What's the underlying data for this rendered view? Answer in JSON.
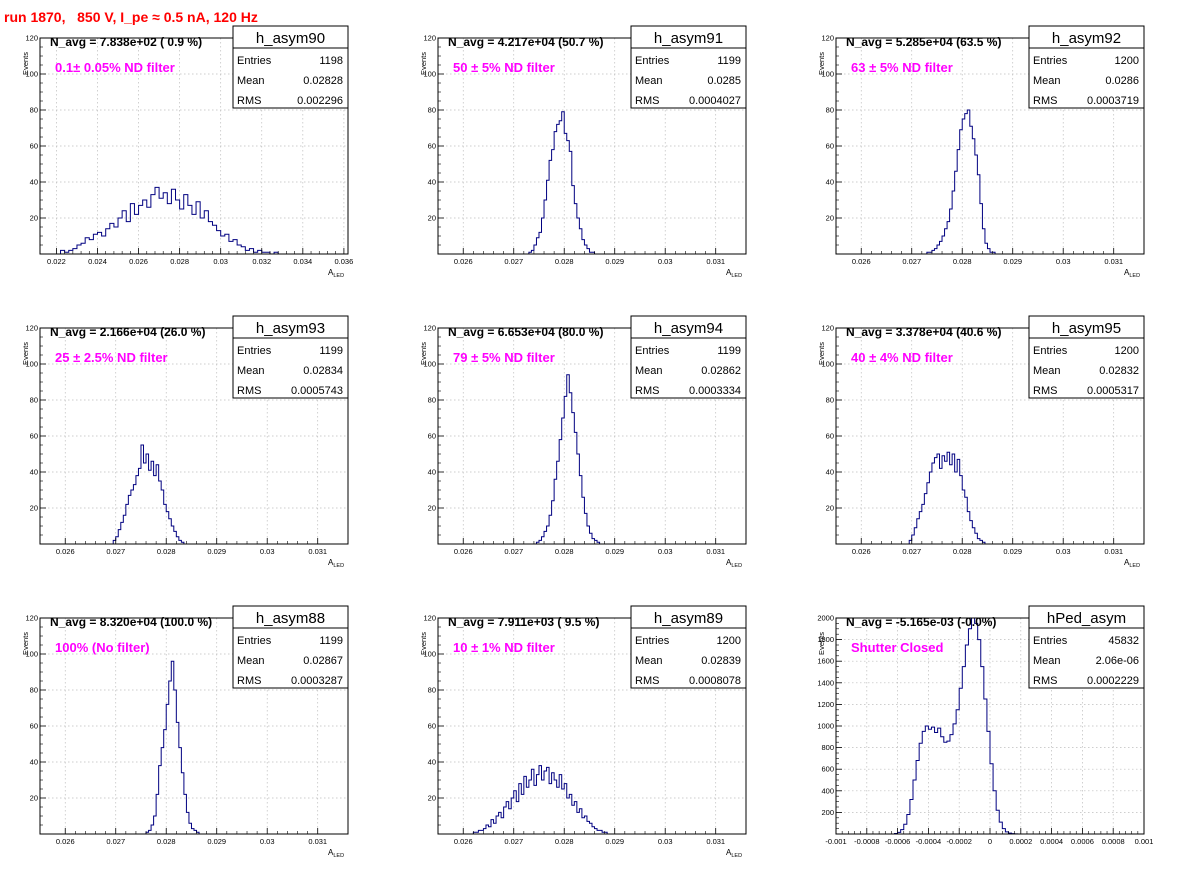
{
  "run_title": "run 1870,   850 V, I_pe ≈ 0.5 nA, 120 Hz",
  "colors": {
    "title": "#ff0000",
    "annotation": "#ff00ff",
    "histogram": "#000080",
    "grid": "#bdbdbd",
    "frame": "#000000"
  },
  "chart_data": [
    {
      "type": "histogram",
      "name": "h_asym90",
      "nav_text": "N_avg = 7.838e+02 ( 0.9 %)",
      "annotation": "0.1± 0.05% ND filter",
      "stats": {
        "entries_label": "Entries",
        "entries": "1198",
        "mean_label": "Mean",
        "mean": "0.02828",
        "rms_label": "RMS",
        "rms": "0.002296"
      },
      "xlabel": "A",
      "xlabel_sub": "LED",
      "ylabel": "Events",
      "grid": true,
      "xlim": [
        0.0212,
        0.0362
      ],
      "ylim": [
        0,
        120
      ],
      "xticks": [
        0.022,
        0.024,
        0.026,
        0.028,
        0.03,
        0.032,
        0.034,
        0.036
      ],
      "xtick_labels": [
        "0.022",
        "0.024",
        "0.026",
        "0.028",
        "0.03",
        "0.032",
        "0.034",
        "0.036"
      ],
      "yticks": [
        0,
        20,
        40,
        60,
        80,
        100,
        120
      ],
      "ytick_labels": [
        "",
        "20",
        "40",
        "60",
        "80",
        "100",
        "120"
      ],
      "bins": {
        "x0": 0.0222,
        "width": 0.0002,
        "values": [
          2,
          1,
          2,
          3,
          5,
          6,
          9,
          8,
          11,
          12,
          10,
          14,
          17,
          15,
          20,
          24,
          18,
          28,
          22,
          27,
          30,
          26,
          33,
          37,
          31,
          34,
          28,
          36,
          30,
          25,
          33,
          27,
          22,
          29,
          20,
          24,
          18,
          16,
          13,
          10,
          11,
          7,
          8,
          5,
          4,
          2,
          3,
          1,
          2,
          1,
          1,
          0,
          1,
          0,
          0
        ]
      }
    },
    {
      "type": "histogram",
      "name": "h_asym91",
      "nav_text": "N_avg = 4.217e+04 (50.7 %)",
      "annotation": "50 ± 5% ND filter",
      "stats": {
        "entries_label": "Entries",
        "entries": "1199",
        "mean_label": "Mean",
        "mean": "0.0285",
        "rms_label": "RMS",
        "rms": "0.0004027"
      },
      "xlabel": "A",
      "xlabel_sub": "LED",
      "ylabel": "Events",
      "grid": true,
      "xlim": [
        0.0255,
        0.0316
      ],
      "ylim": [
        0,
        120
      ],
      "xticks": [
        0.026,
        0.027,
        0.028,
        0.029,
        0.03,
        0.031
      ],
      "xtick_labels": [
        "0.026",
        "0.027",
        "0.028",
        "0.029",
        "0.03",
        "0.031"
      ],
      "yticks": [
        0,
        20,
        40,
        60,
        80,
        100,
        120
      ],
      "ytick_labels": [
        "",
        "20",
        "40",
        "60",
        "80",
        "100",
        "120"
      ],
      "bins": {
        "x0": 0.0273,
        "width": 5e-05,
        "values": [
          1,
          2,
          5,
          9,
          12,
          20,
          30,
          41,
          52,
          58,
          68,
          72,
          74,
          79,
          67,
          63,
          57,
          38,
          28,
          20,
          14,
          8,
          5,
          3,
          1,
          1
        ]
      }
    },
    {
      "type": "histogram",
      "name": "h_asym92",
      "nav_text": "N_avg = 5.285e+04 (63.5 %)",
      "annotation": "63 ± 5% ND filter",
      "stats": {
        "entries_label": "Entries",
        "entries": "1200",
        "mean_label": "Mean",
        "mean": "0.0286",
        "rms_label": "RMS",
        "rms": "0.0003719"
      },
      "xlabel": "A",
      "xlabel_sub": "LED",
      "ylabel": "Events",
      "grid": true,
      "xlim": [
        0.0255,
        0.0316
      ],
      "ylim": [
        0,
        120
      ],
      "xticks": [
        0.026,
        0.027,
        0.028,
        0.029,
        0.03,
        0.031
      ],
      "xtick_labels": [
        "0.026",
        "0.027",
        "0.028",
        "0.029",
        "0.03",
        "0.031"
      ],
      "yticks": [
        0,
        20,
        40,
        60,
        80,
        100,
        120
      ],
      "ytick_labels": [
        "",
        "20",
        "40",
        "60",
        "80",
        "100",
        "120"
      ],
      "bins": {
        "x0": 0.0273,
        "width": 5e-05,
        "values": [
          1,
          1,
          2,
          3,
          5,
          7,
          10,
          14,
          18,
          25,
          35,
          46,
          58,
          69,
          75,
          78,
          80,
          71,
          64,
          55,
          44,
          28,
          14,
          6,
          3,
          1,
          1
        ]
      }
    },
    {
      "type": "histogram",
      "name": "h_asym93",
      "nav_text": "N_avg = 2.166e+04 (26.0 %)",
      "annotation": "25 ± 2.5% ND filter",
      "stats": {
        "entries_label": "Entries",
        "entries": "1199",
        "mean_label": "Mean",
        "mean": "0.02834",
        "rms_label": "RMS",
        "rms": "0.0005743"
      },
      "xlabel": "A",
      "xlabel_sub": "LED",
      "ylabel": "Events",
      "grid": true,
      "xlim": [
        0.0255,
        0.0316
      ],
      "ylim": [
        0,
        120
      ],
      "xticks": [
        0.026,
        0.027,
        0.028,
        0.029,
        0.03,
        0.031
      ],
      "xtick_labels": [
        "0.026",
        "0.027",
        "0.028",
        "0.029",
        "0.03",
        "0.031"
      ],
      "yticks": [
        0,
        20,
        40,
        60,
        80,
        100,
        120
      ],
      "ytick_labels": [
        "",
        "20",
        "40",
        "60",
        "80",
        "100",
        "120"
      ],
      "bins": {
        "x0": 0.02695,
        "width": 5e-05,
        "values": [
          2,
          4,
          8,
          12,
          16,
          22,
          27,
          30,
          33,
          38,
          42,
          55,
          45,
          50,
          41,
          46,
          38,
          44,
          35,
          30,
          22,
          18,
          14,
          10,
          7,
          4,
          2,
          1
        ]
      }
    },
    {
      "type": "histogram",
      "name": "h_asym94",
      "nav_text": "N_avg = 6.653e+04 (80.0 %)",
      "annotation": "79 ± 5% ND filter",
      "stats": {
        "entries_label": "Entries",
        "entries": "1199",
        "mean_label": "Mean",
        "mean": "0.02862",
        "rms_label": "RMS",
        "rms": "0.0003334"
      },
      "xlabel": "A",
      "xlabel_sub": "LED",
      "ylabel": "Events",
      "grid": true,
      "xlim": [
        0.0255,
        0.0316
      ],
      "ylim": [
        0,
        120
      ],
      "xticks": [
        0.026,
        0.027,
        0.028,
        0.029,
        0.03,
        0.031
      ],
      "xtick_labels": [
        "0.026",
        "0.027",
        "0.028",
        "0.029",
        "0.03",
        "0.031"
      ],
      "yticks": [
        0,
        20,
        40,
        60,
        80,
        100,
        120
      ],
      "ytick_labels": [
        "",
        "20",
        "40",
        "60",
        "80",
        "100",
        "120"
      ],
      "bins": {
        "x0": 0.02745,
        "width": 5e-05,
        "values": [
          1,
          2,
          4,
          7,
          10,
          16,
          24,
          36,
          46,
          58,
          70,
          82,
          94,
          84,
          73,
          62,
          50,
          38,
          26,
          17,
          10,
          6,
          3,
          2,
          1
        ]
      }
    },
    {
      "type": "histogram",
      "name": "h_asym95",
      "nav_text": "N_avg = 3.378e+04 (40.6 %)",
      "annotation": "40 ± 4% ND filter",
      "stats": {
        "entries_label": "Entries",
        "entries": "1200",
        "mean_label": "Mean",
        "mean": "0.02832",
        "rms_label": "RMS",
        "rms": "0.0005317"
      },
      "xlabel": "A",
      "xlabel_sub": "LED",
      "ylabel": "Events",
      "grid": true,
      "xlim": [
        0.0255,
        0.0316
      ],
      "ylim": [
        0,
        120
      ],
      "xticks": [
        0.026,
        0.027,
        0.028,
        0.029,
        0.03,
        0.031
      ],
      "xtick_labels": [
        "0.026",
        "0.027",
        "0.028",
        "0.029",
        "0.03",
        "0.031"
      ],
      "yticks": [
        0,
        20,
        40,
        60,
        80,
        100,
        120
      ],
      "ytick_labels": [
        "",
        "20",
        "40",
        "60",
        "80",
        "100",
        "120"
      ],
      "bins": {
        "x0": 0.02695,
        "width": 5e-05,
        "values": [
          2,
          5,
          9,
          14,
          18,
          22,
          28,
          34,
          40,
          45,
          48,
          50,
          42,
          49,
          46,
          51,
          44,
          50,
          40,
          47,
          38,
          30,
          26,
          18,
          13,
          9,
          6,
          3,
          2,
          1
        ]
      }
    },
    {
      "type": "histogram",
      "name": "h_asym88",
      "nav_text": "N_avg = 8.320e+04 (100.0 %)",
      "annotation": "100% (No filter)",
      "stats": {
        "entries_label": "Entries",
        "entries": "1199",
        "mean_label": "Mean",
        "mean": "0.02867",
        "rms_label": "RMS",
        "rms": "0.0003287"
      },
      "xlabel": "A",
      "xlabel_sub": "LED",
      "ylabel": "Events",
      "grid": true,
      "xlim": [
        0.0255,
        0.0316
      ],
      "ylim": [
        0,
        120
      ],
      "xticks": [
        0.026,
        0.027,
        0.028,
        0.029,
        0.03,
        0.031
      ],
      "xtick_labels": [
        "0.026",
        "0.027",
        "0.028",
        "0.029",
        "0.03",
        "0.031"
      ],
      "yticks": [
        0,
        20,
        40,
        60,
        80,
        100,
        120
      ],
      "ytick_labels": [
        "",
        "20",
        "40",
        "60",
        "80",
        "100",
        "120"
      ],
      "bins": {
        "x0": 0.0276,
        "width": 5e-05,
        "values": [
          1,
          2,
          5,
          10,
          22,
          38,
          48,
          58,
          72,
          85,
          96,
          80,
          62,
          48,
          34,
          22,
          12,
          6,
          3,
          2,
          1
        ]
      }
    },
    {
      "type": "histogram",
      "name": "h_asym89",
      "nav_text": "N_avg = 7.911e+03 ( 9.5 %)",
      "annotation": "10 ± 1% ND filter",
      "stats": {
        "entries_label": "Entries",
        "entries": "1200",
        "mean_label": "Mean",
        "mean": "0.02839",
        "rms_label": "RMS",
        "rms": "0.0008078"
      },
      "xlabel": "A",
      "xlabel_sub": "LED",
      "ylabel": "Events",
      "grid": true,
      "xlim": [
        0.0255,
        0.0316
      ],
      "ylim": [
        0,
        120
      ],
      "xticks": [
        0.026,
        0.027,
        0.028,
        0.029,
        0.03,
        0.031
      ],
      "xtick_labels": [
        "0.026",
        "0.027",
        "0.028",
        "0.029",
        "0.03",
        "0.031"
      ],
      "yticks": [
        0,
        20,
        40,
        60,
        80,
        100,
        120
      ],
      "ytick_labels": [
        "",
        "20",
        "40",
        "60",
        "80",
        "100",
        "120"
      ],
      "bins": {
        "x0": 0.0262,
        "width": 5e-05,
        "values": [
          1,
          1,
          2,
          2,
          3,
          5,
          4,
          8,
          6,
          10,
          12,
          9,
          15,
          18,
          14,
          20,
          24,
          18,
          28,
          22,
          32,
          26,
          30,
          36,
          27,
          33,
          38,
          30,
          35,
          37,
          28,
          34,
          30,
          26,
          33,
          25,
          28,
          20,
          22,
          16,
          18,
          12,
          14,
          9,
          10,
          7,
          6,
          4,
          3,
          2,
          2,
          1,
          1
        ]
      }
    },
    {
      "type": "histogram",
      "name": "hPed_asym",
      "nav_text": "N_avg = -5.165e-03 (-0.0%)",
      "annotation": "Shutter Closed",
      "stats": {
        "entries_label": "Entries",
        "entries": "45832",
        "mean_label": "Mean",
        "mean": "2.06e-06",
        "rms_label": "RMS",
        "rms": "0.0002229"
      },
      "xlabel": "",
      "xlabel_sub": "",
      "ylabel": "Events",
      "grid": true,
      "xlim": [
        -0.001,
        0.001
      ],
      "ylim": [
        0,
        2000
      ],
      "xticks": [
        -0.001,
        -0.0008,
        -0.0006,
        -0.0004,
        -0.0002,
        0,
        0.0002,
        0.0004,
        0.0006,
        0.0008,
        0.001
      ],
      "xtick_labels": [
        "-0.001",
        "-0.0008",
        "-0.0006",
        "-0.0004",
        "-0.0002",
        "0",
        "0.0002",
        "0.0004",
        "0.0006",
        "0.0008",
        "0.001"
      ],
      "yticks": [
        0,
        200,
        400,
        600,
        800,
        1000,
        1200,
        1400,
        1600,
        1800,
        2000
      ],
      "ytick_labels": [
        "",
        "200",
        "400",
        "600",
        "800",
        "1000",
        "1200",
        "1400",
        "1600",
        "1800",
        "2000"
      ],
      "bins": {
        "x0": -0.00062,
        "width": 2e-05,
        "values": [
          5,
          15,
          40,
          90,
          180,
          320,
          500,
          680,
          840,
          950,
          1000,
          970,
          990,
          940,
          980,
          900,
          850,
          860,
          920,
          1020,
          1150,
          1350,
          1550,
          1750,
          1900,
          2000,
          1950,
          1800,
          1550,
          1250,
          950,
          650,
          400,
          220,
          110,
          50,
          20,
          8,
          3,
          1
        ]
      }
    }
  ]
}
